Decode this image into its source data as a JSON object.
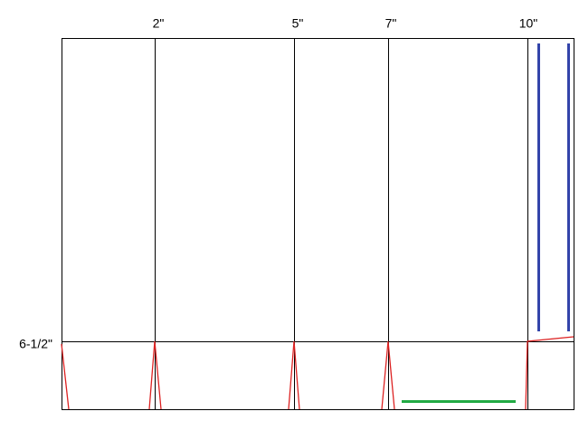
{
  "labels": {
    "top": [
      "2\"",
      "5\"",
      "7\"",
      "10\""
    ],
    "side": "6-1/2\""
  }
}
